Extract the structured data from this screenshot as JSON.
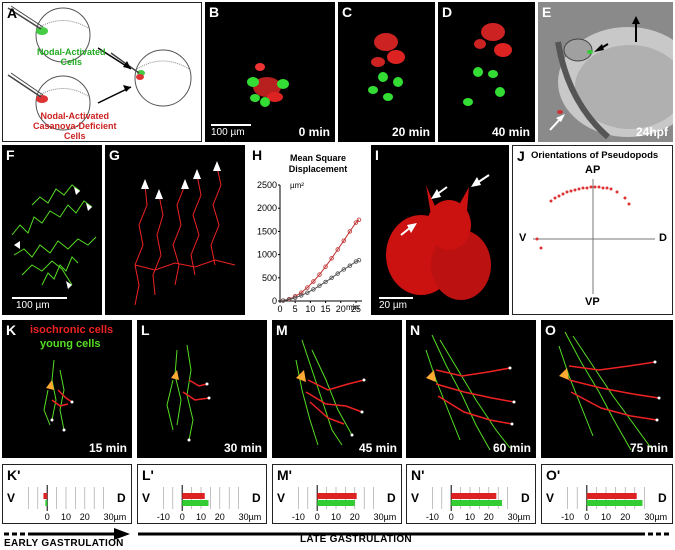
{
  "panels": {
    "A": {
      "label": "A",
      "text_green": [
        "Nodal-Activated",
        "Cells"
      ],
      "text_red": [
        "Nodal-Activated",
        "Casanova-Deficient",
        "Cells"
      ]
    },
    "B": {
      "label": "B",
      "time": "0 min",
      "scale": "100 µm"
    },
    "C": {
      "label": "C",
      "time": "20 min"
    },
    "D": {
      "label": "D",
      "time": "40 min"
    },
    "E": {
      "label": "E",
      "time": "24hpf"
    },
    "F": {
      "label": "F",
      "scale": "100 µm"
    },
    "G": {
      "label": "G"
    },
    "H": {
      "label": "H"
    },
    "I": {
      "label": "I",
      "scale": "20 µm"
    },
    "J": {
      "label": "J",
      "title": "Orientations of Pseudopods",
      "ap": "AP",
      "vp": "VP",
      "v": "V",
      "d": "D"
    },
    "K": {
      "label": "K",
      "time": "15 min",
      "legend_red": "isochronic cells",
      "legend_green": "young cells"
    },
    "L": {
      "label": "L",
      "time": "30 min"
    },
    "M": {
      "label": "M",
      "time": "45 min"
    },
    "N": {
      "label": "N",
      "time": "60 min"
    },
    "O": {
      "label": "O",
      "time": "75 min"
    },
    "Kp": {
      "label": "K'",
      "v": "V",
      "d": "D",
      "ticks": [
        "0",
        "10",
        "20",
        "30µm"
      ]
    },
    "Lp": {
      "label": "L'",
      "v": "V",
      "d": "D",
      "ticks": [
        "-10",
        "0",
        "10",
        "20",
        "30µm"
      ]
    },
    "Mp": {
      "label": "M'",
      "v": "V",
      "d": "D",
      "ticks": [
        "-10",
        "0",
        "10",
        "20",
        "30µm"
      ]
    },
    "Np": {
      "label": "N'",
      "v": "V",
      "d": "D",
      "ticks": [
        "-10",
        "0",
        "10",
        "20",
        "30µm"
      ]
    },
    "Op": {
      "label": "O'",
      "v": "V",
      "d": "D",
      "ticks": [
        "-10",
        "0",
        "10",
        "20",
        "30µm"
      ]
    }
  },
  "chart_data": {
    "type": "line",
    "title": "Mean Square Displacement",
    "ylabel": "µm²",
    "xlabel": "min",
    "xlim": [
      0,
      27
    ],
    "ylim": [
      0,
      2500
    ],
    "x_ticks": [
      0,
      5,
      10,
      15,
      20,
      25
    ],
    "y_ticks": [
      0,
      500,
      1000,
      1500,
      2000,
      2500
    ],
    "x": [
      1,
      3,
      5,
      7,
      9,
      11,
      13,
      15,
      17,
      19,
      21,
      23,
      25,
      26
    ],
    "series": [
      {
        "color": "#c03030",
        "values": [
          10,
          40,
          100,
          180,
          290,
          420,
          570,
          740,
          920,
          1110,
          1300,
          1500,
          1690,
          1750
        ]
      },
      {
        "color": "#505050",
        "values": [
          10,
          30,
          70,
          120,
          180,
          250,
          330,
          410,
          500,
          590,
          680,
          760,
          850,
          880
        ]
      }
    ]
  },
  "displacement_bars": [
    {
      "panel": "Kp",
      "red": -2,
      "green": -1
    },
    {
      "panel": "Lp",
      "red": 12,
      "green": 14
    },
    {
      "panel": "Mp",
      "red": 21,
      "green": 20
    },
    {
      "panel": "Np",
      "red": 24,
      "green": 27
    },
    {
      "panel": "Op",
      "red": 26,
      "green": 29
    }
  ],
  "bar_axis_range": [
    -15,
    35
  ],
  "stage_labels": {
    "early": "EARLY GASTRULATION",
    "late": "LATE GASTRULATION"
  }
}
